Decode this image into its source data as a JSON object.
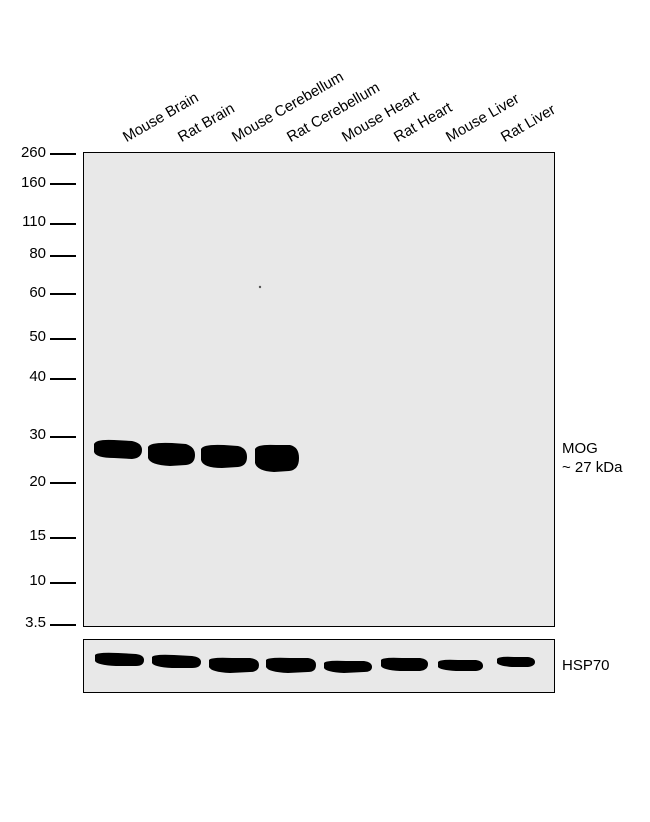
{
  "lanes": [
    "Mouse Brain",
    "Rat Brain",
    "Mouse Cerebellum",
    "Rat Cerebellum",
    "Mouse Heart",
    "Rat Heart",
    "Mouse Liver",
    "Rat Liver"
  ],
  "markers": [
    "260",
    "160",
    "110",
    "80",
    "60",
    "50",
    "40",
    "30",
    "20",
    "15",
    "10",
    "3.5"
  ],
  "main_blot": {
    "label_line1": "MOG",
    "label_line2": "~ 27 kDa",
    "background": "#e8e8e8"
  },
  "control_blot": {
    "label": "HSP70",
    "background": "#e8e8e8"
  },
  "colors": {
    "band": "#000000",
    "frame": "#000000"
  }
}
